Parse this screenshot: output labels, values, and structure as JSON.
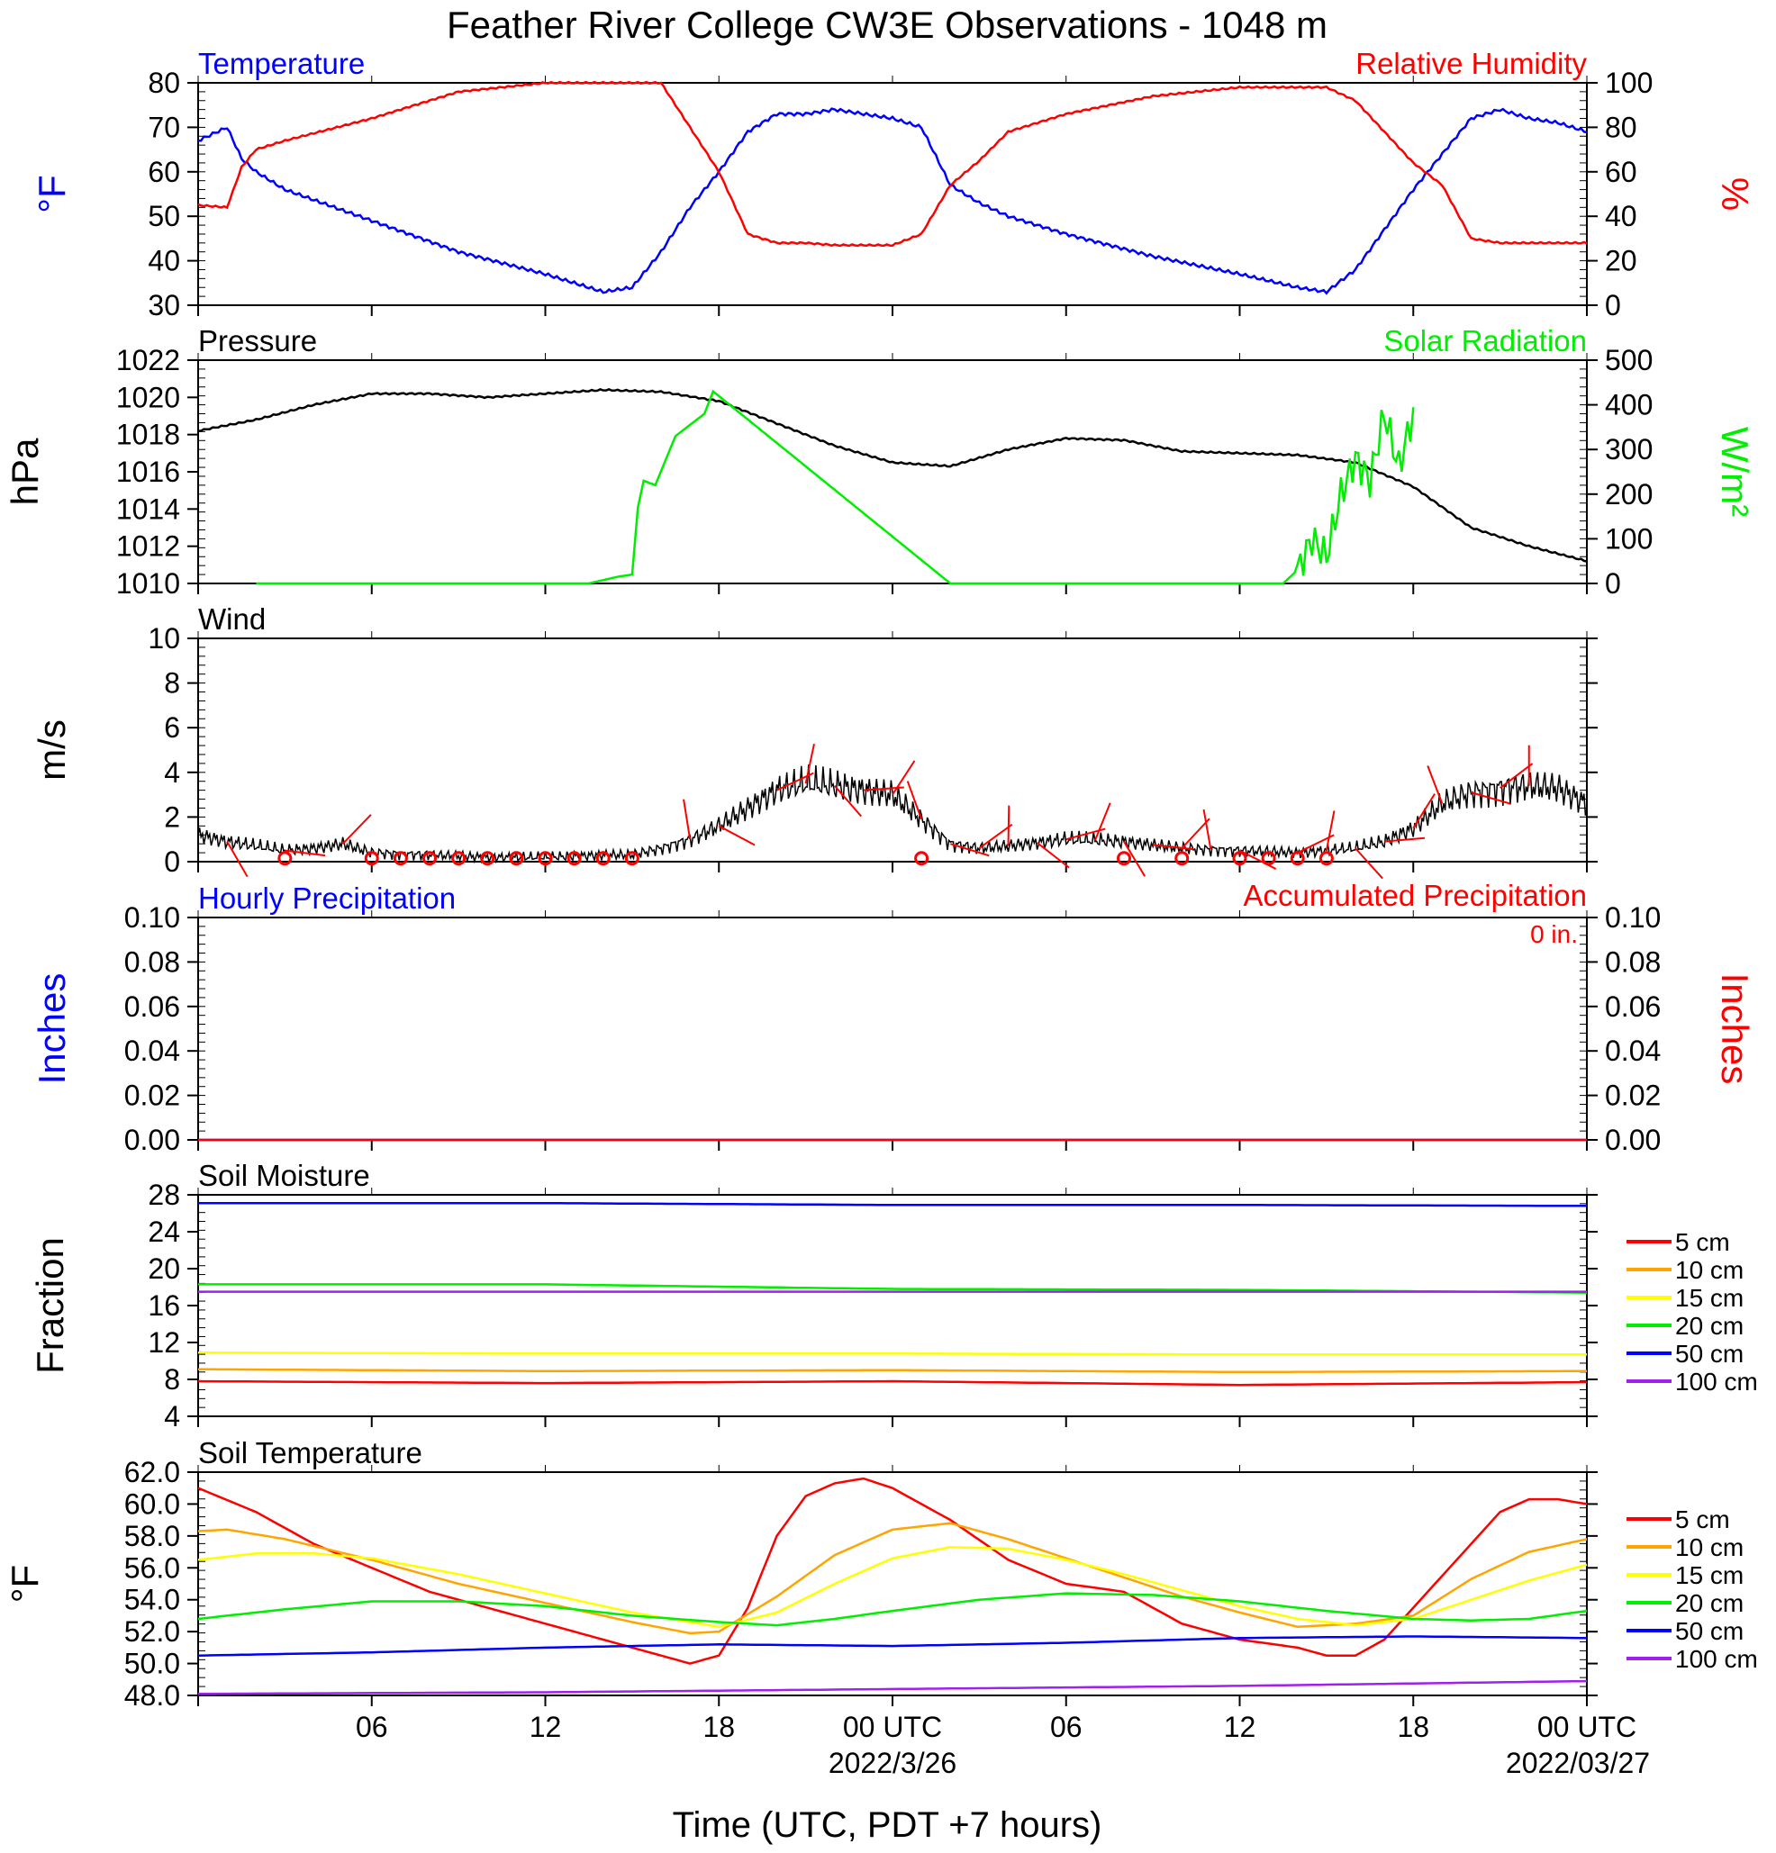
{
  "title": "Feather River College CW3E Observations - 1048 m",
  "xlabel": "Time (UTC, PDT +7 hours)",
  "x_ticks": [
    "06",
    "12",
    "18",
    "00 UTC",
    "06",
    "12",
    "18",
    "00 UTC"
  ],
  "x_dates": [
    "2022/3/26",
    "2022/03/27"
  ],
  "colors": {
    "blue": "#0000ff",
    "red": "#ff0000",
    "green": "#00ee00",
    "black": "#000000",
    "orange": "#ffa500",
    "yellow": "#ffff00",
    "purple": "#a020f0"
  },
  "chart_data": [
    {
      "id": "temp_rh",
      "type": "line",
      "title_left": "Temperature",
      "title_right": "Relative Humidity",
      "ylabel_left": "°F",
      "ylabel_right": "%",
      "ylim_left": [
        30,
        80
      ],
      "ylim_right": [
        0,
        100
      ],
      "yticks_left": [
        "30",
        "40",
        "50",
        "60",
        "70",
        "80"
      ],
      "yticks_right": [
        "0",
        "20",
        "40",
        "60",
        "80",
        "100"
      ],
      "x_hours": [
        0,
        1,
        1.5,
        2,
        3,
        6,
        9,
        12,
        14,
        15,
        16,
        17,
        18,
        19,
        20,
        21,
        22,
        23,
        24,
        25,
        26,
        27,
        28,
        30,
        33,
        36,
        38,
        39,
        40,
        41,
        42,
        43,
        44,
        45,
        46,
        47,
        48
      ],
      "series": [
        {
          "name": "Temperature",
          "axis": "left",
          "color": "#0000ff",
          "values": [
            67,
            70,
            63,
            60,
            56,
            49,
            42,
            37,
            33,
            34,
            42,
            52,
            60,
            69,
            73,
            73,
            74,
            73,
            72,
            70,
            57,
            53,
            50,
            46,
            41,
            37,
            34,
            33,
            38,
            47,
            56,
            64,
            72,
            74,
            72,
            71,
            69
          ]
        },
        {
          "name": "Relative Humidity",
          "axis": "right",
          "color": "#ff0000",
          "values": [
            45,
            44,
            62,
            70,
            74,
            84,
            96,
            100,
            100,
            100,
            100,
            80,
            60,
            32,
            28,
            28,
            27,
            27,
            27,
            32,
            54,
            65,
            78,
            86,
            94,
            98,
            98,
            98,
            92,
            78,
            64,
            54,
            30,
            28,
            28,
            28,
            28
          ]
        }
      ]
    },
    {
      "id": "pressure_solar",
      "type": "line",
      "title_left": "Pressure",
      "title_right": "Solar Radiation",
      "ylabel_left": "hPa",
      "ylabel_right": "W/m²",
      "ylim_left": [
        1010,
        1022
      ],
      "ylim_right": [
        0,
        500
      ],
      "yticks_left": [
        "1010",
        "1012",
        "1014",
        "1016",
        "1018",
        "1020",
        "1022"
      ],
      "yticks_right": [
        "0",
        "100",
        "200",
        "300",
        "400",
        "500"
      ],
      "series": [
        {
          "name": "Pressure",
          "axis": "left",
          "color": "#000000",
          "x_hours": [
            0,
            2,
            4,
            6,
            8,
            10,
            12,
            14,
            16,
            18,
            20,
            22,
            24,
            26,
            28,
            30,
            32,
            34,
            36,
            38,
            40,
            42,
            44,
            46,
            48
          ],
          "values": [
            1018.2,
            1018.8,
            1019.6,
            1020.2,
            1020.2,
            1020.0,
            1020.2,
            1020.4,
            1020.3,
            1019.8,
            1018.6,
            1017.4,
            1016.5,
            1016.3,
            1017.2,
            1017.8,
            1017.7,
            1017.1,
            1017.0,
            1016.9,
            1016.5,
            1015.2,
            1013.0,
            1012.0,
            1011.2
          ]
        },
        {
          "name": "Solar Radiation",
          "axis": "right",
          "color": "#00ee00",
          "x_hours": [
            2,
            13.5,
            14.5,
            15,
            15.2,
            15.4,
            15.8,
            16.5,
            17.5,
            17.8,
            26,
            37.5,
            38,
            38.5,
            39,
            39.5,
            40,
            40.5,
            41,
            41.5,
            42
          ],
          "values": [
            0,
            0,
            15,
            20,
            170,
            230,
            220,
            330,
            380,
            430,
            0,
            0,
            30,
            100,
            60,
            200,
            280,
            230,
            380,
            260,
            380
          ]
        }
      ]
    },
    {
      "id": "wind",
      "type": "line",
      "title_left": "Wind",
      "ylabel_left": "m/s",
      "ylim_left": [
        0,
        10
      ],
      "yticks_left": [
        "0",
        "2",
        "4",
        "6",
        "8",
        "10"
      ],
      "series": [
        {
          "name": "Wind speed",
          "axis": "left",
          "color": "#000000",
          "x_hours": [
            0,
            1,
            2,
            3,
            4,
            5,
            6,
            8,
            10,
            12,
            14,
            15,
            16,
            17,
            18,
            19,
            20,
            21,
            22,
            23,
            24,
            25,
            26,
            27,
            28,
            30,
            32,
            34,
            36,
            38,
            40,
            41,
            42,
            43,
            44,
            45,
            46,
            47,
            48
          ],
          "values": [
            1.2,
            0.9,
            0.7,
            0.5,
            0.6,
            0.8,
            0.4,
            0.3,
            0.2,
            0.2,
            0.3,
            0.3,
            0.6,
            1.0,
            1.6,
            2.4,
            3.2,
            3.5,
            3.4,
            3.2,
            3.0,
            1.9,
            0.8,
            0.6,
            0.7,
            1.0,
            0.9,
            0.6,
            0.5,
            0.4,
            0.6,
            0.9,
            1.5,
            2.6,
            3.1,
            3.3,
            3.4,
            3.3,
            2.6
          ]
        }
      ],
      "barbs_x_hours": [
        1,
        3,
        5,
        17,
        18,
        20,
        21,
        22,
        23,
        24,
        25,
        26,
        27,
        28,
        29,
        30,
        31,
        32,
        33,
        34,
        35,
        36,
        38,
        39,
        40,
        41,
        42,
        43,
        44,
        45,
        46
      ],
      "calm_x_hours": [
        3,
        6,
        7,
        8,
        9,
        10,
        11,
        12,
        13,
        14,
        15,
        25,
        32,
        34,
        36,
        37,
        38,
        39
      ]
    },
    {
      "id": "precip",
      "type": "line",
      "title_left": "Hourly Precipitation",
      "title_right": "Accumulated Precipitation",
      "annotation": "0 in.",
      "ylabel_left": "Inches",
      "ylabel_right": "Inches",
      "ylim_left": [
        0,
        0.1
      ],
      "ylim_right": [
        0,
        0.1
      ],
      "yticks_left": [
        "0.00",
        "0.02",
        "0.04",
        "0.06",
        "0.08",
        "0.10"
      ],
      "yticks_right": [
        "0.00",
        "0.02",
        "0.04",
        "0.06",
        "0.08",
        "0.10"
      ],
      "series": [
        {
          "name": "Hourly Precipitation",
          "axis": "left",
          "color": "#0000ff",
          "x_hours": [
            0,
            48
          ],
          "values": [
            0,
            0
          ]
        },
        {
          "name": "Accumulated Precipitation",
          "axis": "right",
          "color": "#ff0000",
          "x_hours": [
            0,
            48
          ],
          "values": [
            0,
            0
          ]
        }
      ]
    },
    {
      "id": "soil_moisture",
      "type": "line",
      "title_left": "Soil Moisture",
      "ylabel_left": "Fraction",
      "ylim_left": [
        4,
        28
      ],
      "yticks_left": [
        "4",
        "8",
        "12",
        "16",
        "20",
        "24",
        "28"
      ],
      "series": [
        {
          "name": "5 cm",
          "axis": "left",
          "color": "#ff0000",
          "x_hours": [
            0,
            12,
            24,
            36,
            48
          ],
          "values": [
            7.8,
            7.6,
            7.8,
            7.4,
            7.7
          ]
        },
        {
          "name": "10 cm",
          "axis": "left",
          "color": "#ffa500",
          "x_hours": [
            0,
            12,
            24,
            36,
            48
          ],
          "values": [
            9.1,
            8.9,
            9.0,
            8.8,
            8.9
          ]
        },
        {
          "name": "15 cm",
          "axis": "left",
          "color": "#ffff00",
          "x_hours": [
            0,
            12,
            24,
            36,
            48
          ],
          "values": [
            10.9,
            10.8,
            10.8,
            10.7,
            10.7
          ]
        },
        {
          "name": "20 cm",
          "axis": "left",
          "color": "#00ee00",
          "x_hours": [
            0,
            12,
            24,
            36,
            48
          ],
          "values": [
            18.3,
            18.3,
            17.8,
            17.7,
            17.4
          ]
        },
        {
          "name": "50 cm",
          "axis": "left",
          "color": "#0000ff",
          "x_hours": [
            0,
            12,
            24,
            36,
            48
          ],
          "values": [
            27.1,
            27.1,
            26.9,
            26.9,
            26.8
          ]
        },
        {
          "name": "100 cm",
          "axis": "left",
          "color": "#a020f0",
          "x_hours": [
            0,
            12,
            24,
            36,
            48
          ],
          "values": [
            17.5,
            17.5,
            17.5,
            17.5,
            17.5
          ]
        }
      ]
    },
    {
      "id": "soil_temperature",
      "type": "line",
      "title_left": "Soil Temperature",
      "ylabel_left": "°F",
      "ylim_left": [
        48,
        62
      ],
      "yticks_left": [
        "48.0",
        "50.0",
        "52.0",
        "54.0",
        "56.0",
        "58.0",
        "60.0",
        "62.0"
      ],
      "series": [
        {
          "name": "5 cm",
          "axis": "left",
          "color": "#ff0000",
          "x_hours": [
            0,
            2,
            4,
            6,
            8,
            10,
            12,
            14,
            15,
            16,
            17,
            18,
            19,
            20,
            21,
            22,
            23,
            24,
            26,
            28,
            30,
            32,
            34,
            36,
            38,
            39,
            40,
            41,
            42,
            43,
            44,
            45,
            46,
            47,
            48
          ],
          "values": [
            61.0,
            59.5,
            57.5,
            56.0,
            54.5,
            53.5,
            52.5,
            51.5,
            51.0,
            50.5,
            50.0,
            50.5,
            53.5,
            58.0,
            60.5,
            61.3,
            61.6,
            61.0,
            59.0,
            56.5,
            55.0,
            54.5,
            52.5,
            51.5,
            51.0,
            50.5,
            50.5,
            51.5,
            53.5,
            55.5,
            57.5,
            59.5,
            60.3,
            60.3,
            60.0
          ]
        },
        {
          "name": "10 cm",
          "axis": "left",
          "color": "#ffa500",
          "x_hours": [
            0,
            1,
            3,
            6,
            9,
            12,
            15,
            17,
            18,
            20,
            22,
            24,
            26,
            28,
            30,
            32,
            34,
            36,
            38,
            40,
            42,
            44,
            46,
            48
          ],
          "values": [
            58.3,
            58.4,
            57.8,
            56.5,
            55.0,
            53.8,
            52.6,
            51.9,
            52.0,
            54.2,
            56.8,
            58.4,
            58.8,
            57.8,
            56.6,
            55.4,
            54.2,
            53.2,
            52.3,
            52.5,
            53.0,
            55.3,
            57.0,
            57.8
          ]
        },
        {
          "name": "15 cm",
          "axis": "left",
          "color": "#ffff00",
          "x_hours": [
            0,
            2,
            4,
            6,
            9,
            12,
            15,
            18,
            20,
            22,
            24,
            26,
            28,
            30,
            32,
            34,
            36,
            38,
            40,
            42,
            44,
            46,
            48
          ],
          "values": [
            56.5,
            56.9,
            56.9,
            56.6,
            55.6,
            54.4,
            53.2,
            52.3,
            53.2,
            55.0,
            56.6,
            57.3,
            57.2,
            56.5,
            55.6,
            54.6,
            53.6,
            52.8,
            52.4,
            52.8,
            54.0,
            55.2,
            56.2
          ]
        },
        {
          "name": "20 cm",
          "axis": "left",
          "color": "#00ee00",
          "x_hours": [
            0,
            3,
            6,
            9,
            12,
            15,
            18,
            20,
            22,
            24,
            27,
            30,
            33,
            36,
            39,
            42,
            44,
            46,
            48
          ],
          "values": [
            52.8,
            53.4,
            53.9,
            53.9,
            53.6,
            53.0,
            52.6,
            52.4,
            52.8,
            53.3,
            54.0,
            54.4,
            54.3,
            53.9,
            53.3,
            52.8,
            52.7,
            52.8,
            53.3
          ]
        },
        {
          "name": "50 cm",
          "axis": "left",
          "color": "#0000ff",
          "x_hours": [
            0,
            6,
            12,
            18,
            24,
            30,
            36,
            42,
            48
          ],
          "values": [
            50.5,
            50.7,
            51.0,
            51.2,
            51.1,
            51.3,
            51.6,
            51.7,
            51.6
          ]
        },
        {
          "name": "100 cm",
          "axis": "left",
          "color": "#a020f0",
          "x_hours": [
            0,
            12,
            24,
            36,
            48
          ],
          "values": [
            48.1,
            48.2,
            48.4,
            48.6,
            48.9
          ]
        }
      ],
      "legend": [
        "5 cm",
        "10 cm",
        "15 cm",
        "20 cm",
        "50 cm",
        "100 cm"
      ]
    }
  ]
}
